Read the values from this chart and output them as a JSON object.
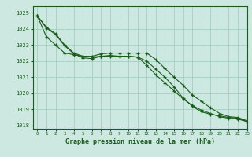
{
  "title": "Graphe pression niveau de la mer (hPa)",
  "bg_color": "#cce8e0",
  "grid_color": "#99ccbb",
  "line_color": "#1a5c1a",
  "xlim": [
    -0.5,
    23
  ],
  "ylim": [
    1017.8,
    1025.4
  ],
  "yticks": [
    1018,
    1019,
    1020,
    1021,
    1022,
    1023,
    1024,
    1025
  ],
  "xticks": [
    0,
    1,
    2,
    3,
    4,
    5,
    6,
    7,
    8,
    9,
    10,
    11,
    12,
    13,
    14,
    15,
    16,
    17,
    18,
    19,
    20,
    21,
    22,
    23
  ],
  "series1": [
    1024.8,
    1024.1,
    1023.7,
    1023.0,
    1022.5,
    1022.3,
    1022.3,
    1022.45,
    1022.5,
    1022.5,
    1022.5,
    1022.5,
    1022.5,
    1022.1,
    1021.55,
    1021.0,
    1020.5,
    1019.9,
    1019.5,
    1019.1,
    1018.75,
    1018.55,
    1018.5,
    1018.3
  ],
  "series2": [
    1024.8,
    1023.5,
    1023.0,
    1022.5,
    1022.4,
    1022.3,
    1022.25,
    1022.3,
    1022.3,
    1022.3,
    1022.3,
    1022.25,
    1021.75,
    1021.15,
    1020.65,
    1020.15,
    1019.65,
    1019.25,
    1018.95,
    1018.75,
    1018.55,
    1018.45,
    1018.4,
    1018.25
  ],
  "series3": [
    1024.8,
    1024.05,
    1023.65,
    1022.95,
    1022.45,
    1022.2,
    1022.15,
    1022.3,
    1022.35,
    1022.3,
    1022.3,
    1022.25,
    1022.0,
    1021.5,
    1021.0,
    1020.4,
    1019.7,
    1019.2,
    1018.85,
    1018.7,
    1018.6,
    1018.5,
    1018.45,
    1018.25
  ]
}
